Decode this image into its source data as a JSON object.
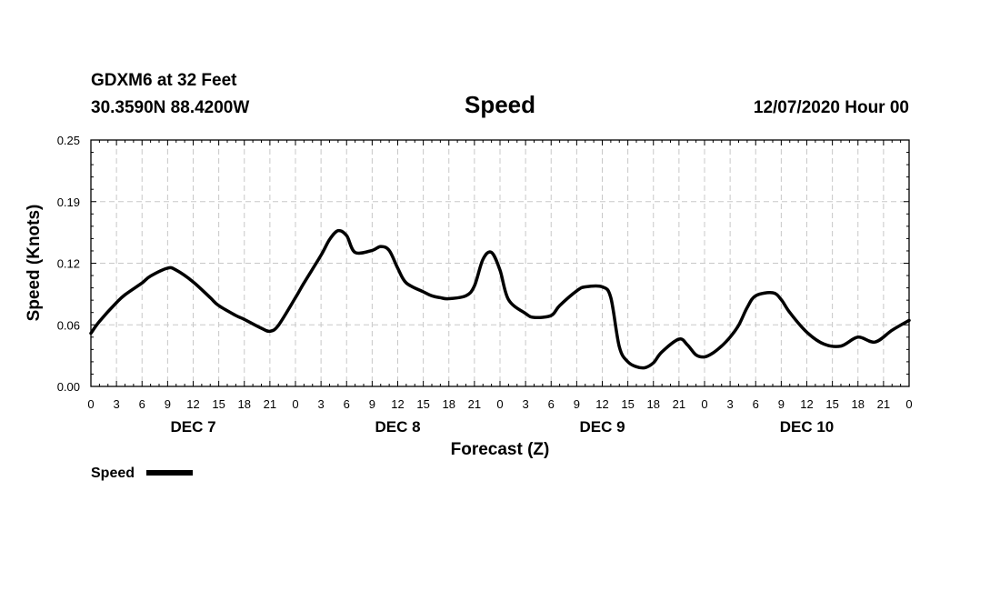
{
  "header": {
    "station": "GDXM6 at 32 Feet",
    "coords": "30.3590N 88.4200W",
    "datetime": "12/07/2020 Hour 00"
  },
  "legend": {
    "label": "Speed"
  },
  "colors": {
    "line": "#000000",
    "grid": "#c8c8c8"
  },
  "chart_data": {
    "type": "line",
    "title": "Speed",
    "xlabel": "Forecast (Z)",
    "ylabel": "Speed (Knots)",
    "xlim": [
      0,
      96
    ],
    "ylim": [
      0,
      0.25
    ],
    "y_tick_values": [
      0,
      0.0625,
      0.125,
      0.1875,
      0.25
    ],
    "y_tick_labels": [
      "0.00",
      "0.06",
      "0.12",
      "0.19",
      "0.25"
    ],
    "x_tick_hours": [
      0,
      3,
      6,
      9,
      12,
      15,
      18,
      21,
      24,
      27,
      30,
      33,
      36,
      39,
      42,
      45,
      48,
      51,
      54,
      57,
      60,
      63,
      66,
      69,
      72,
      75,
      78,
      81,
      84,
      87,
      90,
      93,
      96
    ],
    "x_tick_labels": [
      "0",
      "3",
      "6",
      "9",
      "12",
      "15",
      "18",
      "21",
      "0",
      "3",
      "6",
      "9",
      "12",
      "15",
      "18",
      "21",
      "0",
      "3",
      "6",
      "9",
      "12",
      "15",
      "18",
      "21",
      "0",
      "3",
      "6",
      "9",
      "12",
      "15",
      "18",
      "21",
      "0"
    ],
    "day_labels": [
      {
        "hour": 12,
        "label": "DEC 7"
      },
      {
        "hour": 36,
        "label": "DEC 8"
      },
      {
        "hour": 60,
        "label": "DEC 9"
      },
      {
        "hour": 84,
        "label": "DEC 10"
      }
    ],
    "series": [
      {
        "name": "Speed",
        "x": [
          0,
          1,
          3,
          4,
          6,
          7,
          9,
          10,
          12,
          14,
          15,
          17,
          18,
          20,
          21,
          22,
          24,
          25,
          27,
          28,
          29,
          30,
          31,
          33,
          34,
          35,
          36,
          37,
          39,
          40,
          41,
          42,
          44,
          45,
          46,
          47,
          48,
          49,
          51,
          52,
          54,
          55,
          57,
          58,
          60,
          61,
          62,
          63,
          64,
          65,
          66,
          67,
          69,
          70,
          71,
          72,
          73,
          74,
          75,
          76,
          77,
          78,
          80,
          81,
          82,
          84,
          86,
          88,
          90,
          92,
          94,
          96
        ],
        "values": [
          0.054,
          0.066,
          0.085,
          0.093,
          0.105,
          0.112,
          0.12,
          0.118,
          0.106,
          0.09,
          0.082,
          0.072,
          0.068,
          0.059,
          0.056,
          0.062,
          0.09,
          0.105,
          0.133,
          0.149,
          0.158,
          0.153,
          0.136,
          0.138,
          0.142,
          0.138,
          0.12,
          0.105,
          0.096,
          0.092,
          0.09,
          0.089,
          0.092,
          0.102,
          0.129,
          0.136,
          0.118,
          0.088,
          0.074,
          0.07,
          0.072,
          0.082,
          0.097,
          0.101,
          0.101,
          0.09,
          0.04,
          0.025,
          0.02,
          0.019,
          0.024,
          0.035,
          0.048,
          0.042,
          0.032,
          0.03,
          0.034,
          0.041,
          0.05,
          0.062,
          0.08,
          0.092,
          0.095,
          0.088,
          0.075,
          0.055,
          0.043,
          0.041,
          0.05,
          0.045,
          0.057,
          0.067
        ]
      }
    ]
  }
}
